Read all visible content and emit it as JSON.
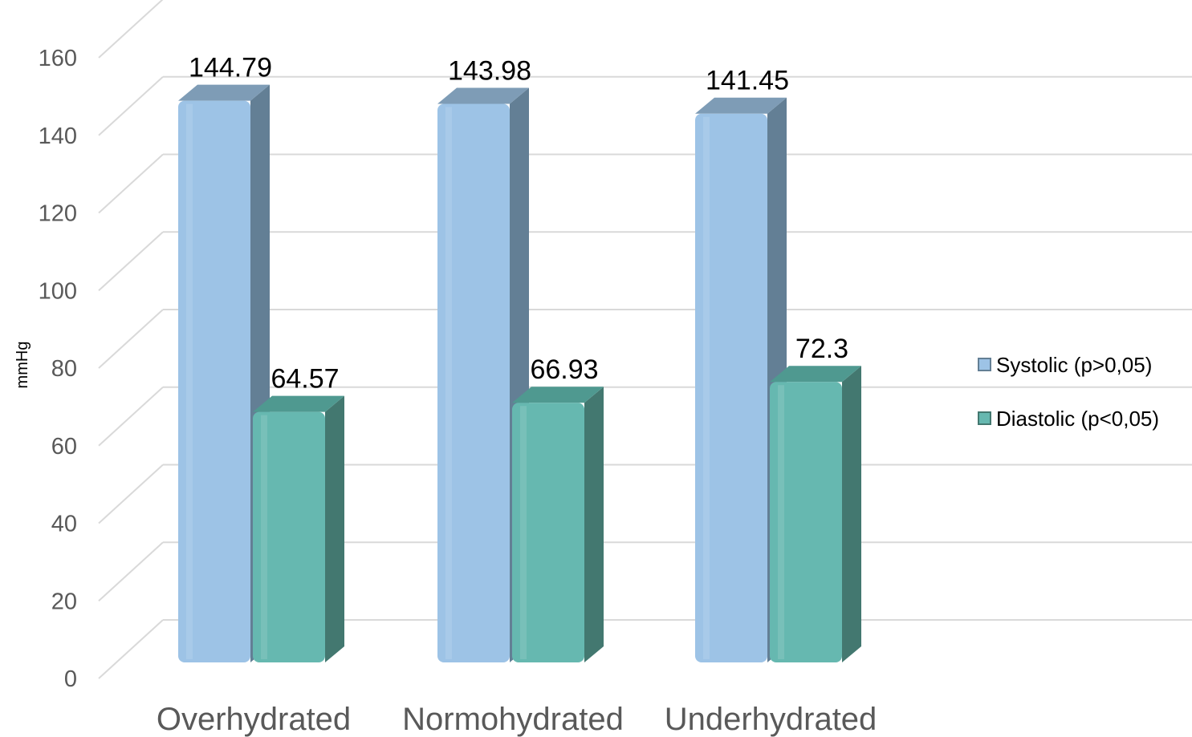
{
  "chart_data": {
    "type": "bar",
    "categories": [
      "Overhydrated",
      "Normohydrated",
      "Underhydrated"
    ],
    "series": [
      {
        "name": "Systolic (p>0,05)",
        "values": [
          144.79,
          143.98,
          141.45
        ],
        "color": "#9dc3e6",
        "side_color": "#637f95",
        "top_color": "#7e9cb6"
      },
      {
        "name": "Diastolic (p<0,05)",
        "values": [
          64.57,
          66.93,
          72.3
        ],
        "color": "#66b8b0",
        "side_color": "#437870",
        "top_color": "#4f9990"
      }
    ],
    "value_labels": [
      [
        "144.79",
        "143.98",
        "141.45"
      ],
      [
        "64.57",
        "66.93",
        "72.3"
      ]
    ],
    "y_ticks": [
      "0",
      "20",
      "40",
      "60",
      "80",
      "100",
      "120",
      "140",
      "160"
    ],
    "ylabel": "mmHg",
    "xlabel": "",
    "title": "",
    "ylim": [
      0,
      160
    ],
    "grid": true,
    "legend_position": "right"
  }
}
